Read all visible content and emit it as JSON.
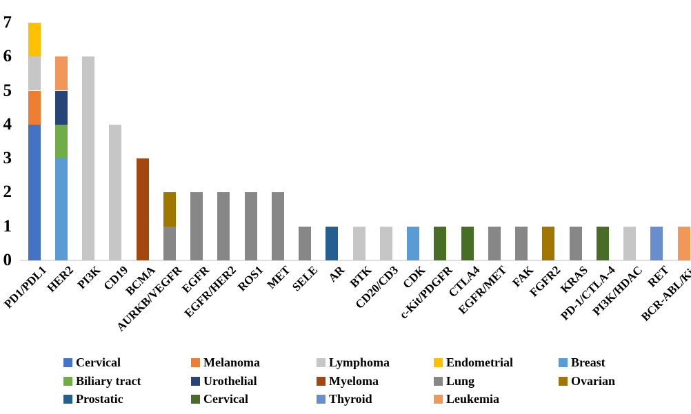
{
  "chart_data": {
    "type": "bar",
    "stacked": true,
    "title": "",
    "xlabel": "",
    "ylabel": "",
    "ylim": [
      0,
      7
    ],
    "yticks": [
      0,
      1,
      2,
      3,
      4,
      5,
      6,
      7
    ],
    "grid": false,
    "legend_position": "bottom",
    "legend_rows": [
      [
        "Cervical",
        "Melanoma",
        "Lymphoma",
        "Endometrial",
        "Breast"
      ],
      [
        "Biliary tract",
        "Urothelial",
        "Myeloma",
        "Lung",
        "Ovarian"
      ],
      [
        "Prostatic",
        "Cervical",
        "Thyroid",
        "Leukemia"
      ]
    ],
    "categories": [
      "PD1/PDL1",
      "HER2",
      "PI3K",
      "CD19",
      "BCMA",
      "AURKB/VEGFR",
      "EGFR",
      "EGFR/HER2",
      "ROS1",
      "MET",
      "SELE",
      "AR",
      "BTK",
      "CD20/CD3",
      "CDK",
      "c-Kit/PDGFR",
      "CTLA4",
      "EGFR/MET",
      "FAK",
      "FGFR2",
      "KRAS",
      "PD-1/CTLA-4",
      "PI3K/HDAC",
      "RET",
      "BCR-ABL/Kit"
    ],
    "series": [
      {
        "name": "Cervical",
        "color": "#4472C4",
        "values": [
          4,
          0,
          0,
          0,
          0,
          0,
          0,
          0,
          0,
          0,
          0,
          0,
          0,
          0,
          0,
          0,
          0,
          0,
          0,
          0,
          0,
          0,
          0,
          0,
          0
        ]
      },
      {
        "name": "Melanoma",
        "color": "#ED7D31",
        "values": [
          1,
          0,
          0,
          0,
          0,
          0,
          0,
          0,
          0,
          0,
          0,
          0,
          0,
          0,
          0,
          0,
          0,
          0,
          0,
          0,
          0,
          0,
          0,
          0,
          0
        ]
      },
      {
        "name": "Lymphoma",
        "color": "#C6C6C6",
        "values": [
          1,
          0,
          6,
          4,
          0,
          0,
          0,
          0,
          0,
          0,
          0,
          0,
          1,
          1,
          0,
          0,
          0,
          0,
          0,
          0,
          0,
          0,
          1,
          0,
          0
        ]
      },
      {
        "name": "Endometrial",
        "color": "#FFC000",
        "values": [
          1,
          0,
          0,
          0,
          0,
          0,
          0,
          0,
          0,
          0,
          0,
          0,
          0,
          0,
          0,
          0,
          0,
          0,
          0,
          0,
          0,
          0,
          0,
          0,
          0
        ]
      },
      {
        "name": "Breast",
        "color": "#5B9BD5",
        "values": [
          0,
          3,
          0,
          0,
          0,
          0,
          0,
          0,
          0,
          0,
          0,
          0,
          0,
          0,
          1,
          0,
          0,
          0,
          0,
          0,
          0,
          0,
          0,
          0,
          0
        ]
      },
      {
        "name": "Biliary tract",
        "color": "#70AD47",
        "values": [
          0,
          1,
          0,
          0,
          0,
          0,
          0,
          0,
          0,
          0,
          0,
          0,
          0,
          0,
          0,
          0,
          0,
          0,
          0,
          0,
          0,
          0,
          0,
          0,
          0
        ]
      },
      {
        "name": "Urothelial",
        "color": "#264478",
        "values": [
          0,
          1,
          0,
          0,
          0,
          0,
          0,
          0,
          0,
          0,
          0,
          0,
          0,
          0,
          0,
          0,
          0,
          0,
          0,
          0,
          0,
          0,
          0,
          0,
          0
        ]
      },
      {
        "name": "Myeloma",
        "color": "#A4470E",
        "values": [
          0,
          0,
          0,
          0,
          3,
          0,
          0,
          0,
          0,
          0,
          0,
          0,
          0,
          0,
          0,
          0,
          0,
          0,
          0,
          0,
          0,
          0,
          0,
          0,
          0
        ]
      },
      {
        "name": "Lung",
        "color": "#878787",
        "values": [
          0,
          0,
          0,
          0,
          0,
          1,
          2,
          2,
          2,
          2,
          1,
          0,
          0,
          0,
          0,
          0,
          0,
          1,
          1,
          0,
          1,
          0,
          0,
          0,
          0
        ]
      },
      {
        "name": "Ovarian",
        "color": "#9E7600",
        "values": [
          0,
          0,
          0,
          0,
          0,
          1,
          0,
          0,
          0,
          0,
          0,
          0,
          0,
          0,
          0,
          0,
          0,
          0,
          0,
          1,
          0,
          0,
          0,
          0,
          0
        ]
      },
      {
        "name": "Prostatic",
        "color": "#255E91",
        "values": [
          0,
          0,
          0,
          0,
          0,
          0,
          0,
          0,
          0,
          0,
          0,
          1,
          0,
          0,
          0,
          0,
          0,
          0,
          0,
          0,
          0,
          0,
          0,
          0,
          0
        ]
      },
      {
        "name": "Cervical",
        "color": "#486D27",
        "values": [
          0,
          0,
          0,
          0,
          0,
          0,
          0,
          0,
          0,
          0,
          0,
          0,
          0,
          0,
          0,
          1,
          1,
          0,
          0,
          0,
          0,
          1,
          0,
          0,
          0
        ]
      },
      {
        "name": "Thyroid",
        "color": "#698ED0",
        "values": [
          0,
          0,
          0,
          0,
          0,
          0,
          0,
          0,
          0,
          0,
          0,
          0,
          0,
          0,
          0,
          0,
          0,
          0,
          0,
          0,
          0,
          0,
          0,
          1,
          0
        ]
      },
      {
        "name": "Leukemia",
        "color": "#F1975A",
        "values": [
          0,
          1,
          0,
          0,
          0,
          0,
          0,
          0,
          0,
          0,
          0,
          0,
          0,
          0,
          0,
          0,
          0,
          0,
          0,
          0,
          0,
          0,
          0,
          0,
          1
        ]
      }
    ],
    "bar_totals": [
      7,
      6,
      6,
      4,
      3,
      2,
      2,
      2,
      2,
      2,
      1,
      1,
      1,
      1,
      1,
      1,
      1,
      1,
      1,
      1,
      1,
      1,
      1,
      1,
      1
    ],
    "axis_line_color": "#dfdfdf"
  }
}
